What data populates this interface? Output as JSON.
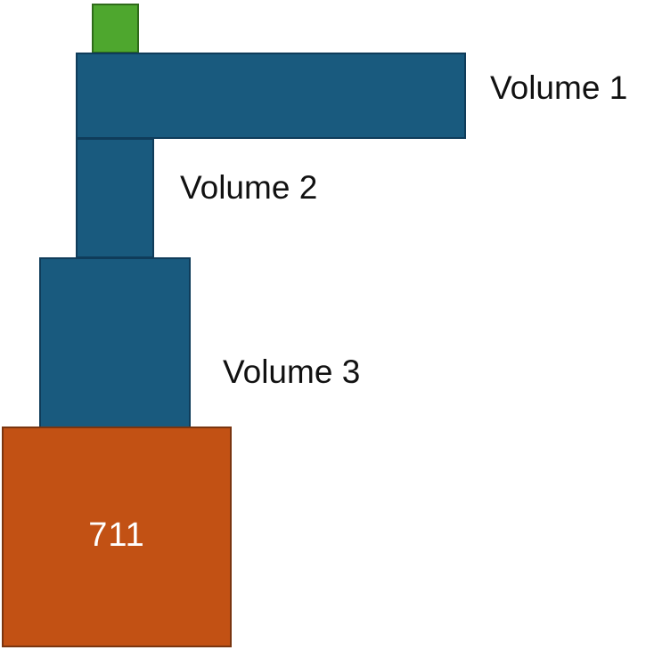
{
  "colors": {
    "volume_blue": "#195a7e",
    "top_green": "#4ea72e",
    "base_orange": "#c25114"
  },
  "blocks": {
    "volume_1": {
      "label": "Volume 1"
    },
    "volume_2": {
      "label": "Volume 2"
    },
    "volume_3": {
      "label": "Volume 3"
    },
    "base": {
      "label": "711"
    }
  }
}
